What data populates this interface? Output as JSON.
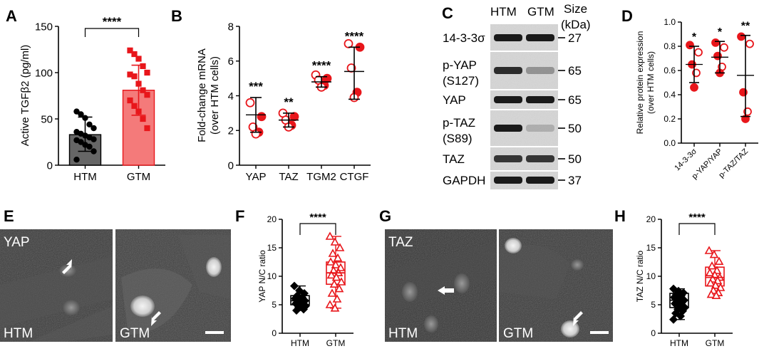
{
  "panel_letters": [
    "A",
    "B",
    "C",
    "D",
    "E",
    "F",
    "G",
    "H"
  ],
  "colors": {
    "htm": "#000000",
    "gtm": "#e8161b",
    "htm_bar": "#666666",
    "gtm_bar": "#f47a7a"
  },
  "chart_data": [
    {
      "panel": "A",
      "type": "bar",
      "categories": [
        "HTM",
        "GTM"
      ],
      "values": [
        33,
        81
      ],
      "sd": [
        [
          15,
          52
        ],
        [
          54,
          108
        ]
      ],
      "points": [
        [
          58,
          55,
          51,
          44,
          40,
          36,
          34,
          32,
          30,
          28,
          27,
          25,
          22,
          20,
          15,
          6
        ],
        [
          124,
          120,
          115,
          107,
          100,
          98,
          96,
          88,
          81,
          76,
          70,
          64,
          58,
          50,
          40
        ]
      ],
      "ylabel": "Active TGFβ2 (pg/ml)",
      "ylim": [
        0,
        150
      ],
      "yticks": [
        0,
        50,
        100,
        150
      ],
      "significance": "****"
    },
    {
      "panel": "B",
      "type": "scatter",
      "categories": [
        "YAP",
        "TAZ",
        "TGM2",
        "CTGF"
      ],
      "means": [
        2.9,
        2.6,
        4.8,
        5.4
      ],
      "sd": [
        [
          1.9,
          3.9
        ],
        [
          2.2,
          3.0
        ],
        [
          4.5,
          5.1
        ],
        [
          3.8,
          6.8
        ]
      ],
      "points": [
        [
          3.6,
          2.8,
          2.2,
          1.9,
          1.8
        ],
        [
          3.0,
          2.8,
          2.6,
          2.3,
          2.2
        ],
        [
          5.2,
          5.0,
          4.9,
          4.6,
          4.5
        ],
        [
          7.0,
          6.8,
          5.6,
          4.2,
          3.9
        ]
      ],
      "ylabel": "Fold-change mRNA",
      "ylabel2": "(over HTM cells)",
      "ylim": [
        0,
        8
      ],
      "yticks": [
        0,
        2,
        4,
        6,
        8
      ],
      "significance": [
        "***",
        "**",
        "****",
        "****"
      ]
    },
    {
      "panel": "D",
      "type": "scatter",
      "categories": [
        "14-3-3σ",
        "p-YAP/YAP",
        "p-TAZ/TAZ"
      ],
      "means": [
        0.65,
        0.71,
        0.56
      ],
      "sd": [
        [
          0.5,
          0.8
        ],
        [
          0.58,
          0.84
        ],
        [
          0.22,
          0.89
        ]
      ],
      "points": [
        [
          0.81,
          0.75,
          0.65,
          0.58,
          0.46
        ],
        [
          0.83,
          0.79,
          0.72,
          0.63,
          0.58
        ],
        [
          0.88,
          0.82,
          0.42,
          0.26,
          0.2
        ]
      ],
      "ylabel": "Relative protein expression",
      "ylabel2": "(over HTM cells)",
      "ylim": [
        0,
        1.0
      ],
      "yticks": [
        "0.0",
        "0.2",
        "0.4",
        "0.6",
        "0.8",
        "1.0"
      ],
      "significance": [
        "*",
        "*",
        "**"
      ]
    },
    {
      "panel": "F",
      "type": "box",
      "categories": [
        "HTM",
        "GTM"
      ],
      "boxes": [
        {
          "min": 4.0,
          "q1": 5.0,
          "median": 5.7,
          "q3": 6.6,
          "max": 8.3
        },
        {
          "min": 4.4,
          "q1": 8.6,
          "median": 10.6,
          "q3": 12.5,
          "max": 17.0
        }
      ],
      "points": [
        [
          8.3,
          7.5,
          7.0,
          6.6,
          6.3,
          6.1,
          5.9,
          5.7,
          5.6,
          5.4,
          5.2,
          5.0,
          4.8,
          4.5,
          4.2,
          4.0
        ],
        [
          17.0,
          16.0,
          15.0,
          14.0,
          13.2,
          12.5,
          12.0,
          11.5,
          11.0,
          10.6,
          10.2,
          9.8,
          9.0,
          8.6,
          7.8,
          7.0,
          6.0,
          5.0,
          4.4
        ]
      ],
      "ylabel": "YAP N/C ratio",
      "ylim": [
        0,
        20
      ],
      "yticks": [
        0,
        5,
        10,
        15,
        20
      ],
      "significance": "****"
    },
    {
      "panel": "H",
      "type": "box",
      "categories": [
        "HTM",
        "GTM"
      ],
      "boxes": [
        {
          "min": 2.4,
          "q1": 4.5,
          "median": 5.8,
          "q3": 7.0,
          "max": 7.8
        },
        {
          "min": 6.6,
          "q1": 8.3,
          "median": 9.8,
          "q3": 11.6,
          "max": 14.5
        }
      ],
      "points": [
        [
          7.8,
          7.4,
          7.1,
          6.8,
          6.6,
          6.3,
          6.0,
          5.8,
          5.6,
          5.4,
          5.2,
          4.8,
          4.5,
          4.2,
          3.9,
          3.5,
          3.0,
          2.4
        ],
        [
          14.5,
          13.8,
          12.6,
          11.8,
          11.0,
          10.6,
          10.2,
          9.8,
          9.5,
          9.2,
          8.8,
          8.4,
          8.0,
          7.5,
          7.1,
          6.8,
          6.6
        ]
      ],
      "ylabel": "TAZ N/C ratio",
      "ylim": [
        0,
        20
      ],
      "yticks": [
        0,
        5,
        10,
        15,
        20
      ],
      "significance": "****"
    }
  ],
  "blot": {
    "headers": [
      "HTM",
      "GTM"
    ],
    "size_header": "Size",
    "size_unit": "(kDa)",
    "rows": [
      {
        "label": "14-3-3σ",
        "label2": "",
        "size": "27"
      },
      {
        "label": "p-YAP",
        "label2": "(S127)",
        "size": "65"
      },
      {
        "label": "YAP",
        "label2": "",
        "size": "65"
      },
      {
        "label": "p-TAZ",
        "label2": "(S89)",
        "size": "50"
      },
      {
        "label": "TAZ",
        "label2": "",
        "size": "50"
      },
      {
        "label": "GAPDH",
        "label2": "",
        "size": "37"
      }
    ]
  },
  "micrographs": {
    "E": {
      "stain": "YAP",
      "left": "HTM",
      "right": "GTM"
    },
    "G": {
      "stain": "TAZ",
      "left": "HTM",
      "right": "GTM"
    }
  }
}
